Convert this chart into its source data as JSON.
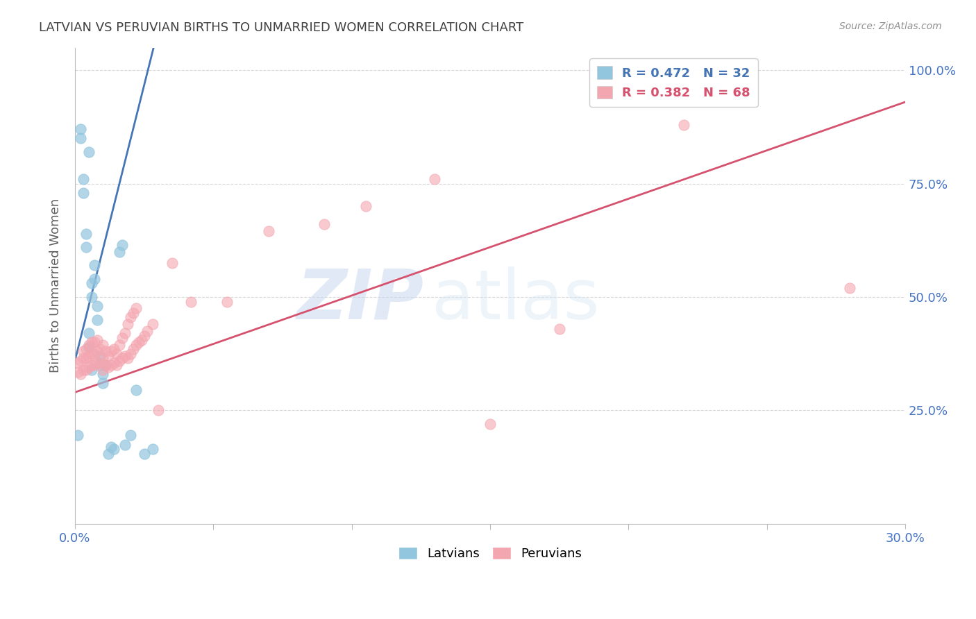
{
  "title": "LATVIAN VS PERUVIAN BIRTHS TO UNMARRIED WOMEN CORRELATION CHART",
  "source": "Source: ZipAtlas.com",
  "ylabel": "Births to Unmarried Women",
  "xlim": [
    0.0,
    0.3
  ],
  "ylim": [
    0.0,
    1.05
  ],
  "latvian_R": 0.472,
  "latvian_N": 32,
  "peruvian_R": 0.382,
  "peruvian_N": 68,
  "latvian_color": "#92c5de",
  "peruvian_color": "#f4a6b0",
  "latvian_line_color": "#4575b4",
  "peruvian_line_color": "#d6516e",
  "watermark_zip": "ZIP",
  "watermark_atlas": "atlas",
  "background_color": "#ffffff",
  "grid_color": "#d8d8d8",
  "axis_color": "#bbbbbb",
  "title_color": "#404040",
  "ylabel_color": "#606060",
  "tick_color": "#4472c4",
  "latvian_x": [
    0.001,
    0.002,
    0.002,
    0.003,
    0.003,
    0.004,
    0.004,
    0.005,
    0.005,
    0.005,
    0.006,
    0.006,
    0.006,
    0.007,
    0.007,
    0.008,
    0.008,
    0.009,
    0.009,
    0.01,
    0.01,
    0.011,
    0.012,
    0.013,
    0.014,
    0.016,
    0.017,
    0.018,
    0.02,
    0.022,
    0.025,
    0.028
  ],
  "latvian_y": [
    0.195,
    0.85,
    0.87,
    0.73,
    0.76,
    0.61,
    0.64,
    0.39,
    0.42,
    0.82,
    0.5,
    0.53,
    0.34,
    0.54,
    0.57,
    0.45,
    0.48,
    0.35,
    0.37,
    0.31,
    0.33,
    0.35,
    0.155,
    0.17,
    0.165,
    0.6,
    0.615,
    0.175,
    0.195,
    0.295,
    0.155,
    0.165
  ],
  "peruvian_x": [
    0.001,
    0.001,
    0.002,
    0.002,
    0.003,
    0.003,
    0.003,
    0.004,
    0.004,
    0.004,
    0.005,
    0.005,
    0.005,
    0.006,
    0.006,
    0.006,
    0.007,
    0.007,
    0.007,
    0.008,
    0.008,
    0.008,
    0.009,
    0.009,
    0.01,
    0.01,
    0.01,
    0.011,
    0.011,
    0.012,
    0.012,
    0.013,
    0.013,
    0.014,
    0.014,
    0.015,
    0.015,
    0.016,
    0.016,
    0.017,
    0.017,
    0.018,
    0.018,
    0.019,
    0.019,
    0.02,
    0.02,
    0.021,
    0.021,
    0.022,
    0.022,
    0.023,
    0.024,
    0.025,
    0.026,
    0.028,
    0.03,
    0.035,
    0.042,
    0.055,
    0.07,
    0.09,
    0.105,
    0.13,
    0.15,
    0.175,
    0.22,
    0.28
  ],
  "peruvian_y": [
    0.335,
    0.355,
    0.33,
    0.36,
    0.34,
    0.365,
    0.38,
    0.34,
    0.365,
    0.385,
    0.345,
    0.37,
    0.395,
    0.35,
    0.375,
    0.4,
    0.35,
    0.375,
    0.4,
    0.355,
    0.38,
    0.405,
    0.355,
    0.385,
    0.34,
    0.365,
    0.395,
    0.35,
    0.38,
    0.345,
    0.37,
    0.35,
    0.38,
    0.355,
    0.385,
    0.35,
    0.375,
    0.36,
    0.395,
    0.365,
    0.41,
    0.37,
    0.42,
    0.365,
    0.44,
    0.375,
    0.455,
    0.385,
    0.465,
    0.395,
    0.475,
    0.4,
    0.405,
    0.415,
    0.425,
    0.44,
    0.25,
    0.575,
    0.49,
    0.49,
    0.645,
    0.66,
    0.7,
    0.76,
    0.22,
    0.43,
    0.88,
    0.52
  ],
  "latvian_trendline_x0": 0.0,
  "latvian_trendline_y0": 0.36,
  "latvian_trendline_x1": 0.028,
  "latvian_trendline_y1": 1.04,
  "peruvian_trendline_x0": 0.0,
  "peruvian_trendline_y0": 0.29,
  "peruvian_trendline_x1": 0.3,
  "peruvian_trendline_y1": 0.93
}
